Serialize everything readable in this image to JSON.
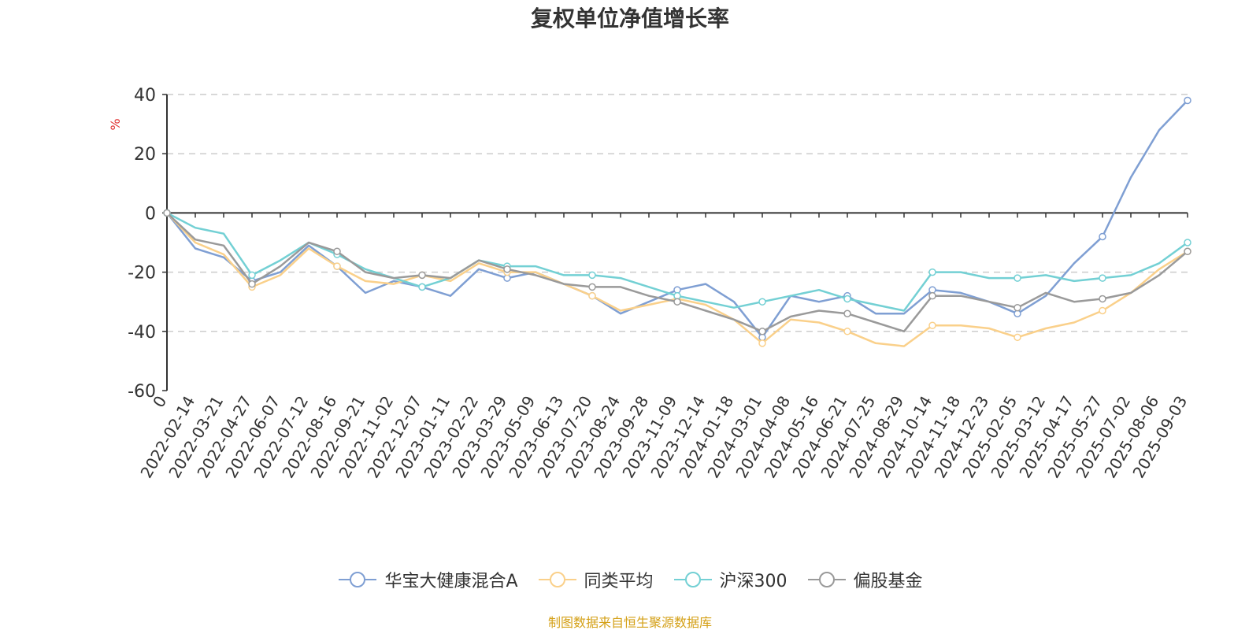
{
  "chart_data": {
    "type": "line",
    "title": "复权单位净值增长率",
    "ylabel": "%",
    "ylim": [
      -60,
      40
    ],
    "yticks": [
      40,
      20,
      0,
      -20,
      -40,
      -60
    ],
    "grid": true,
    "legend_position": "bottom-center",
    "source_note": "制图数据来自恒生聚源数据库",
    "x_labels": [
      "0",
      "2022-02-14",
      "2022-03-21",
      "2022-04-27",
      "2022-06-07",
      "2022-07-12",
      "2022-08-16",
      "2022-09-21",
      "2022-11-02",
      "2022-12-07",
      "2023-01-11",
      "2023-02-22",
      "2023-03-29",
      "2023-05-09",
      "2023-06-13",
      "2023-07-20",
      "2023-08-24",
      "2023-09-28",
      "2023-11-09",
      "2023-12-14",
      "2024-01-18",
      "2024-03-01",
      "2024-04-08",
      "2024-05-16",
      "2024-06-21",
      "2024-07-25",
      "2024-08-29",
      "2024-10-14",
      "2024-11-18",
      "2024-12-23",
      "2025-02-05",
      "2025-03-12",
      "2025-04-17",
      "2025-05-27",
      "2025-07-02",
      "2025-08-06",
      "2025-09-03"
    ],
    "series": [
      {
        "name": "华宝大健康混合A",
        "color": "#7f9fd3",
        "values": [
          0,
          -12,
          -15,
          -23,
          -20,
          -11,
          -18,
          -27,
          -23,
          -25,
          -28,
          -19,
          -22,
          -20,
          -24,
          -28,
          -34,
          -30,
          -26,
          -24,
          -30,
          -42,
          -28,
          -30,
          -28,
          -34,
          -34,
          -26,
          -27,
          -30,
          -34,
          -28,
          -17,
          -8,
          12,
          28,
          38
        ]
      },
      {
        "name": "同类平均",
        "color": "#fad08a",
        "values": [
          0,
          -10,
          -14,
          -25,
          -21,
          -12,
          -18,
          -23,
          -24,
          -21,
          -23,
          -17,
          -20,
          -20,
          -24,
          -28,
          -33,
          -31,
          -29,
          -31,
          -36,
          -44,
          -36,
          -37,
          -40,
          -44,
          -45,
          -38,
          -38,
          -39,
          -42,
          -39,
          -37,
          -33,
          -27,
          -19,
          -13
        ]
      },
      {
        "name": "沪深300",
        "color": "#73d0d4",
        "values": [
          0,
          -5,
          -7,
          -21,
          -16,
          -10,
          -14,
          -19,
          -22,
          -25,
          -22,
          -16,
          -18,
          -18,
          -21,
          -21,
          -22,
          -25,
          -28,
          -30,
          -32,
          -30,
          -28,
          -26,
          -29,
          -31,
          -33,
          -20,
          -20,
          -22,
          -22,
          -21,
          -23,
          -22,
          -21,
          -17,
          -10
        ]
      },
      {
        "name": "偏股基金",
        "color": "#9a9a9a",
        "values": [
          0,
          -9,
          -11,
          -24,
          -18,
          -10,
          -13,
          -20,
          -22,
          -21,
          -22,
          -16,
          -19,
          -21,
          -24,
          -25,
          -25,
          -28,
          -30,
          -33,
          -36,
          -40,
          -35,
          -33,
          -34,
          -37,
          -40,
          -28,
          -28,
          -30,
          -32,
          -27,
          -30,
          -29,
          -27,
          -21,
          -13
        ]
      }
    ]
  }
}
